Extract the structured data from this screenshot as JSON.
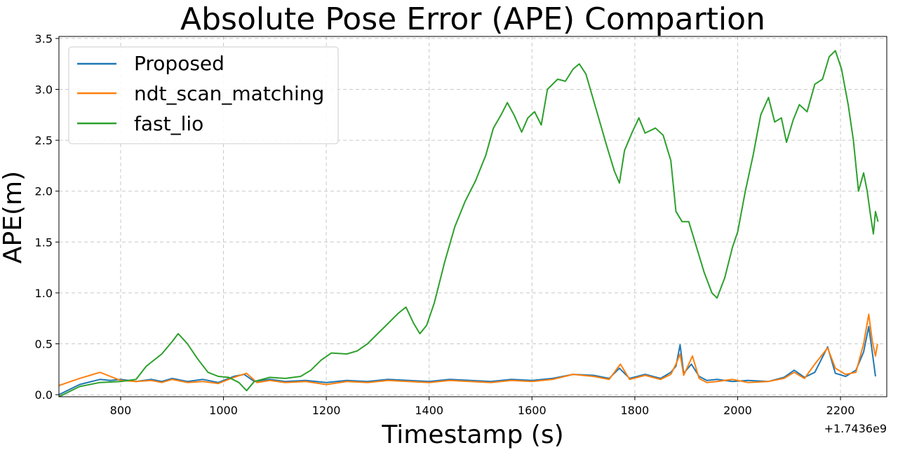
{
  "chart_data": {
    "type": "line",
    "title": "Absolute Pose Error (APE) Compartion",
    "xlabel": "Timestamp (s)",
    "ylabel": "APE(m)",
    "x_offset_label": "+1.7436e9",
    "xlim": [
      680,
      2290
    ],
    "ylim": [
      -0.02,
      3.52
    ],
    "xticks": [
      800,
      1000,
      1200,
      1400,
      1600,
      1800,
      2000,
      2200
    ],
    "xtick_labels": [
      "800",
      "1000",
      "1200",
      "1400",
      "1600",
      "1800",
      "2000",
      "2200"
    ],
    "yticks": [
      0.0,
      0.5,
      1.0,
      1.5,
      2.0,
      2.5,
      3.0,
      3.5
    ],
    "ytick_labels": [
      "0.0",
      "0.5",
      "1.0",
      "1.5",
      "2.0",
      "2.5",
      "3.0",
      "3.5"
    ],
    "grid": true,
    "legend_position": "top-left",
    "series": [
      {
        "name": "Proposed",
        "color": "#1f77b4",
        "points": [
          [
            680,
            0.0
          ],
          [
            720,
            0.1
          ],
          [
            760,
            0.15
          ],
          [
            780,
            0.14
          ],
          [
            800,
            0.15
          ],
          [
            830,
            0.13
          ],
          [
            860,
            0.15
          ],
          [
            880,
            0.13
          ],
          [
            900,
            0.16
          ],
          [
            930,
            0.13
          ],
          [
            960,
            0.15
          ],
          [
            990,
            0.12
          ],
          [
            1020,
            0.18
          ],
          [
            1040,
            0.2
          ],
          [
            1060,
            0.13
          ],
          [
            1090,
            0.15
          ],
          [
            1120,
            0.13
          ],
          [
            1160,
            0.14
          ],
          [
            1200,
            0.12
          ],
          [
            1240,
            0.14
          ],
          [
            1280,
            0.13
          ],
          [
            1320,
            0.15
          ],
          [
            1360,
            0.14
          ],
          [
            1400,
            0.13
          ],
          [
            1440,
            0.15
          ],
          [
            1480,
            0.14
          ],
          [
            1520,
            0.13
          ],
          [
            1560,
            0.15
          ],
          [
            1600,
            0.14
          ],
          [
            1640,
            0.16
          ],
          [
            1680,
            0.2
          ],
          [
            1720,
            0.19
          ],
          [
            1750,
            0.16
          ],
          [
            1770,
            0.26
          ],
          [
            1790,
            0.16
          ],
          [
            1820,
            0.2
          ],
          [
            1850,
            0.16
          ],
          [
            1870,
            0.22
          ],
          [
            1880,
            0.28
          ],
          [
            1888,
            0.49
          ],
          [
            1895,
            0.21
          ],
          [
            1910,
            0.3
          ],
          [
            1925,
            0.18
          ],
          [
            1940,
            0.14
          ],
          [
            1960,
            0.15
          ],
          [
            1990,
            0.13
          ],
          [
            2020,
            0.14
          ],
          [
            2060,
            0.13
          ],
          [
            2090,
            0.17
          ],
          [
            2110,
            0.24
          ],
          [
            2130,
            0.17
          ],
          [
            2150,
            0.22
          ],
          [
            2175,
            0.47
          ],
          [
            2190,
            0.21
          ],
          [
            2210,
            0.18
          ],
          [
            2230,
            0.24
          ],
          [
            2245,
            0.42
          ],
          [
            2255,
            0.67
          ],
          [
            2262,
            0.41
          ],
          [
            2268,
            0.18
          ]
        ]
      },
      {
        "name": "ndt_scan_matching",
        "color": "#ff7f0e",
        "points": [
          [
            680,
            0.09
          ],
          [
            720,
            0.16
          ],
          [
            760,
            0.22
          ],
          [
            780,
            0.18
          ],
          [
            800,
            0.14
          ],
          [
            830,
            0.13
          ],
          [
            860,
            0.14
          ],
          [
            880,
            0.12
          ],
          [
            900,
            0.15
          ],
          [
            930,
            0.12
          ],
          [
            960,
            0.13
          ],
          [
            990,
            0.11
          ],
          [
            1020,
            0.17
          ],
          [
            1045,
            0.21
          ],
          [
            1065,
            0.12
          ],
          [
            1090,
            0.14
          ],
          [
            1120,
            0.12
          ],
          [
            1160,
            0.13
          ],
          [
            1200,
            0.1
          ],
          [
            1240,
            0.13
          ],
          [
            1280,
            0.12
          ],
          [
            1320,
            0.14
          ],
          [
            1360,
            0.13
          ],
          [
            1400,
            0.12
          ],
          [
            1440,
            0.14
          ],
          [
            1480,
            0.13
          ],
          [
            1520,
            0.12
          ],
          [
            1560,
            0.14
          ],
          [
            1600,
            0.13
          ],
          [
            1640,
            0.15
          ],
          [
            1680,
            0.2
          ],
          [
            1720,
            0.18
          ],
          [
            1750,
            0.15
          ],
          [
            1772,
            0.3
          ],
          [
            1790,
            0.15
          ],
          [
            1820,
            0.19
          ],
          [
            1850,
            0.15
          ],
          [
            1870,
            0.2
          ],
          [
            1880,
            0.3
          ],
          [
            1888,
            0.4
          ],
          [
            1895,
            0.19
          ],
          [
            1912,
            0.38
          ],
          [
            1925,
            0.16
          ],
          [
            1940,
            0.12
          ],
          [
            1960,
            0.13
          ],
          [
            1990,
            0.15
          ],
          [
            2020,
            0.12
          ],
          [
            2060,
            0.13
          ],
          [
            2090,
            0.16
          ],
          [
            2110,
            0.22
          ],
          [
            2130,
            0.16
          ],
          [
            2150,
            0.3
          ],
          [
            2175,
            0.46
          ],
          [
            2190,
            0.26
          ],
          [
            2210,
            0.2
          ],
          [
            2230,
            0.22
          ],
          [
            2245,
            0.5
          ],
          [
            2255,
            0.79
          ],
          [
            2262,
            0.52
          ],
          [
            2268,
            0.38
          ],
          [
            2272,
            0.5
          ]
        ]
      },
      {
        "name": "fast_lio",
        "color": "#2ca02c",
        "points": [
          [
            680,
            -0.02
          ],
          [
            720,
            0.08
          ],
          [
            760,
            0.12
          ],
          [
            800,
            0.13
          ],
          [
            830,
            0.15
          ],
          [
            850,
            0.28
          ],
          [
            880,
            0.4
          ],
          [
            900,
            0.52
          ],
          [
            912,
            0.6
          ],
          [
            930,
            0.5
          ],
          [
            950,
            0.35
          ],
          [
            970,
            0.22
          ],
          [
            990,
            0.18
          ],
          [
            1010,
            0.17
          ],
          [
            1030,
            0.12
          ],
          [
            1045,
            0.04
          ],
          [
            1060,
            0.13
          ],
          [
            1090,
            0.17
          ],
          [
            1120,
            0.16
          ],
          [
            1150,
            0.18
          ],
          [
            1170,
            0.24
          ],
          [
            1190,
            0.34
          ],
          [
            1210,
            0.41
          ],
          [
            1240,
            0.4
          ],
          [
            1260,
            0.43
          ],
          [
            1280,
            0.5
          ],
          [
            1300,
            0.6
          ],
          [
            1320,
            0.7
          ],
          [
            1340,
            0.8
          ],
          [
            1355,
            0.86
          ],
          [
            1370,
            0.7
          ],
          [
            1382,
            0.6
          ],
          [
            1395,
            0.68
          ],
          [
            1410,
            0.9
          ],
          [
            1430,
            1.3
          ],
          [
            1450,
            1.65
          ],
          [
            1470,
            1.9
          ],
          [
            1490,
            2.1
          ],
          [
            1510,
            2.35
          ],
          [
            1525,
            2.62
          ],
          [
            1540,
            2.75
          ],
          [
            1552,
            2.87
          ],
          [
            1565,
            2.75
          ],
          [
            1580,
            2.58
          ],
          [
            1592,
            2.72
          ],
          [
            1605,
            2.78
          ],
          [
            1618,
            2.65
          ],
          [
            1630,
            3.0
          ],
          [
            1650,
            3.1
          ],
          [
            1665,
            3.08
          ],
          [
            1680,
            3.2
          ],
          [
            1692,
            3.25
          ],
          [
            1705,
            3.15
          ],
          [
            1725,
            2.8
          ],
          [
            1745,
            2.45
          ],
          [
            1760,
            2.2
          ],
          [
            1770,
            2.08
          ],
          [
            1780,
            2.4
          ],
          [
            1795,
            2.58
          ],
          [
            1808,
            2.72
          ],
          [
            1820,
            2.57
          ],
          [
            1840,
            2.62
          ],
          [
            1855,
            2.55
          ],
          [
            1870,
            2.3
          ],
          [
            1880,
            1.8
          ],
          [
            1892,
            1.7
          ],
          [
            1905,
            1.7
          ],
          [
            1920,
            1.45
          ],
          [
            1935,
            1.2
          ],
          [
            1950,
            1.0
          ],
          [
            1960,
            0.95
          ],
          [
            1975,
            1.15
          ],
          [
            1990,
            1.45
          ],
          [
            2000,
            1.6
          ],
          [
            2015,
            2.0
          ],
          [
            2030,
            2.35
          ],
          [
            2045,
            2.75
          ],
          [
            2060,
            2.92
          ],
          [
            2072,
            2.68
          ],
          [
            2085,
            2.72
          ],
          [
            2095,
            2.48
          ],
          [
            2108,
            2.7
          ],
          [
            2120,
            2.85
          ],
          [
            2135,
            2.78
          ],
          [
            2150,
            3.05
          ],
          [
            2165,
            3.1
          ],
          [
            2178,
            3.32
          ],
          [
            2190,
            3.38
          ],
          [
            2202,
            3.2
          ],
          [
            2215,
            2.85
          ],
          [
            2225,
            2.5
          ],
          [
            2235,
            2.0
          ],
          [
            2245,
            2.18
          ],
          [
            2252,
            2.0
          ],
          [
            2258,
            1.78
          ],
          [
            2264,
            1.58
          ],
          [
            2268,
            1.8
          ],
          [
            2273,
            1.7
          ]
        ]
      }
    ]
  }
}
